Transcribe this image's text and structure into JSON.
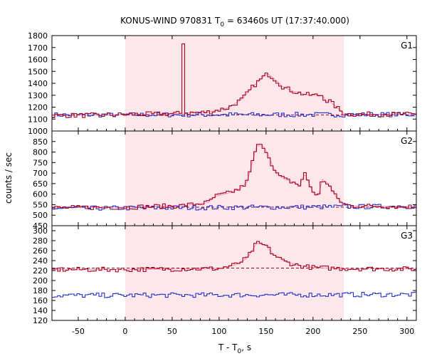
{
  "chart_data": {
    "type": "line",
    "title": "KONUS-WIND 970831 T",
    "title_sub": "0",
    "title_rest": " = 63460s UT (17:37:40.000)",
    "xlabel": "T - T",
    "xlabel_sub": "0",
    "xlabel_rest": ", s",
    "ylabel": "counts / sec",
    "xlim": [
      -78,
      310
    ],
    "xticks": [
      -50,
      0,
      50,
      100,
      150,
      200,
      250,
      300
    ],
    "shade_interval": [
      0,
      233
    ],
    "colors": {
      "signal": "#b00016",
      "background": "#2233cc",
      "fit": "#dd99cc",
      "shade": "#fde7eb"
    },
    "panels": [
      {
        "label": "G1",
        "ylim": [
          1000,
          1800
        ],
        "yticks": [
          1000,
          1100,
          1200,
          1300,
          1400,
          1500,
          1600,
          1700,
          1800
        ],
        "baseline_level": 1135,
        "signal_knots": [
          [
            -78,
            1130
          ],
          [
            -30,
            1132
          ],
          [
            0,
            1138
          ],
          [
            50,
            1145
          ],
          [
            90,
            1160
          ],
          [
            110,
            1195
          ],
          [
            125,
            1270
          ],
          [
            137,
            1380
          ],
          [
            148,
            1460
          ],
          [
            152,
            1480
          ],
          [
            160,
            1430
          ],
          [
            168,
            1370
          ],
          [
            180,
            1330
          ],
          [
            193,
            1305
          ],
          [
            200,
            1300
          ],
          [
            210,
            1300
          ],
          [
            214,
            1250
          ],
          [
            218,
            1250
          ],
          [
            222,
            1220
          ],
          [
            228,
            1180
          ],
          [
            232,
            1150
          ],
          [
            240,
            1140
          ],
          [
            310,
            1140
          ]
        ],
        "spike": {
          "x": [
            59,
            62
          ],
          "value": 1730
        },
        "background_knots": [
          [
            -78,
            1135
          ],
          [
            310,
            1138
          ]
        ]
      },
      {
        "label": "G2",
        "ylim": [
          450,
          900
        ],
        "yticks": [
          450,
          500,
          550,
          600,
          650,
          700,
          750,
          800,
          850
        ],
        "baseline_level": 538,
        "signal_knots": [
          [
            -78,
            535
          ],
          [
            0,
            538
          ],
          [
            60,
            545
          ],
          [
            88,
            560
          ],
          [
            96,
            590
          ],
          [
            110,
            605
          ],
          [
            122,
            625
          ],
          [
            130,
            660
          ],
          [
            140,
            830
          ],
          [
            147,
            830
          ],
          [
            153,
            780
          ],
          [
            160,
            700
          ],
          [
            170,
            670
          ],
          [
            180,
            655
          ],
          [
            186,
            640
          ],
          [
            191,
            700
          ],
          [
            200,
            610
          ],
          [
            206,
            595
          ],
          [
            210,
            670
          ],
          [
            216,
            650
          ],
          [
            224,
            590
          ],
          [
            232,
            555
          ],
          [
            240,
            545
          ],
          [
            310,
            540
          ]
        ],
        "spike": null,
        "background_knots": [
          [
            -78,
            532
          ],
          [
            310,
            542
          ]
        ]
      },
      {
        "label": "G3",
        "ylim": [
          120,
          310
        ],
        "yticks": [
          120,
          140,
          160,
          180,
          200,
          220,
          240,
          260,
          280,
          300
        ],
        "baseline_level": 225,
        "signal_knots": [
          [
            -78,
            222
          ],
          [
            0,
            222
          ],
          [
            100,
            224
          ],
          [
            118,
            232
          ],
          [
            130,
            245
          ],
          [
            140,
            275
          ],
          [
            150,
            270
          ],
          [
            158,
            252
          ],
          [
            170,
            238
          ],
          [
            185,
            230
          ],
          [
            200,
            226
          ],
          [
            232,
            224
          ],
          [
            310,
            223
          ]
        ],
        "spike": null,
        "background_knots": [
          [
            -78,
            170
          ],
          [
            310,
            172
          ]
        ]
      }
    ]
  }
}
